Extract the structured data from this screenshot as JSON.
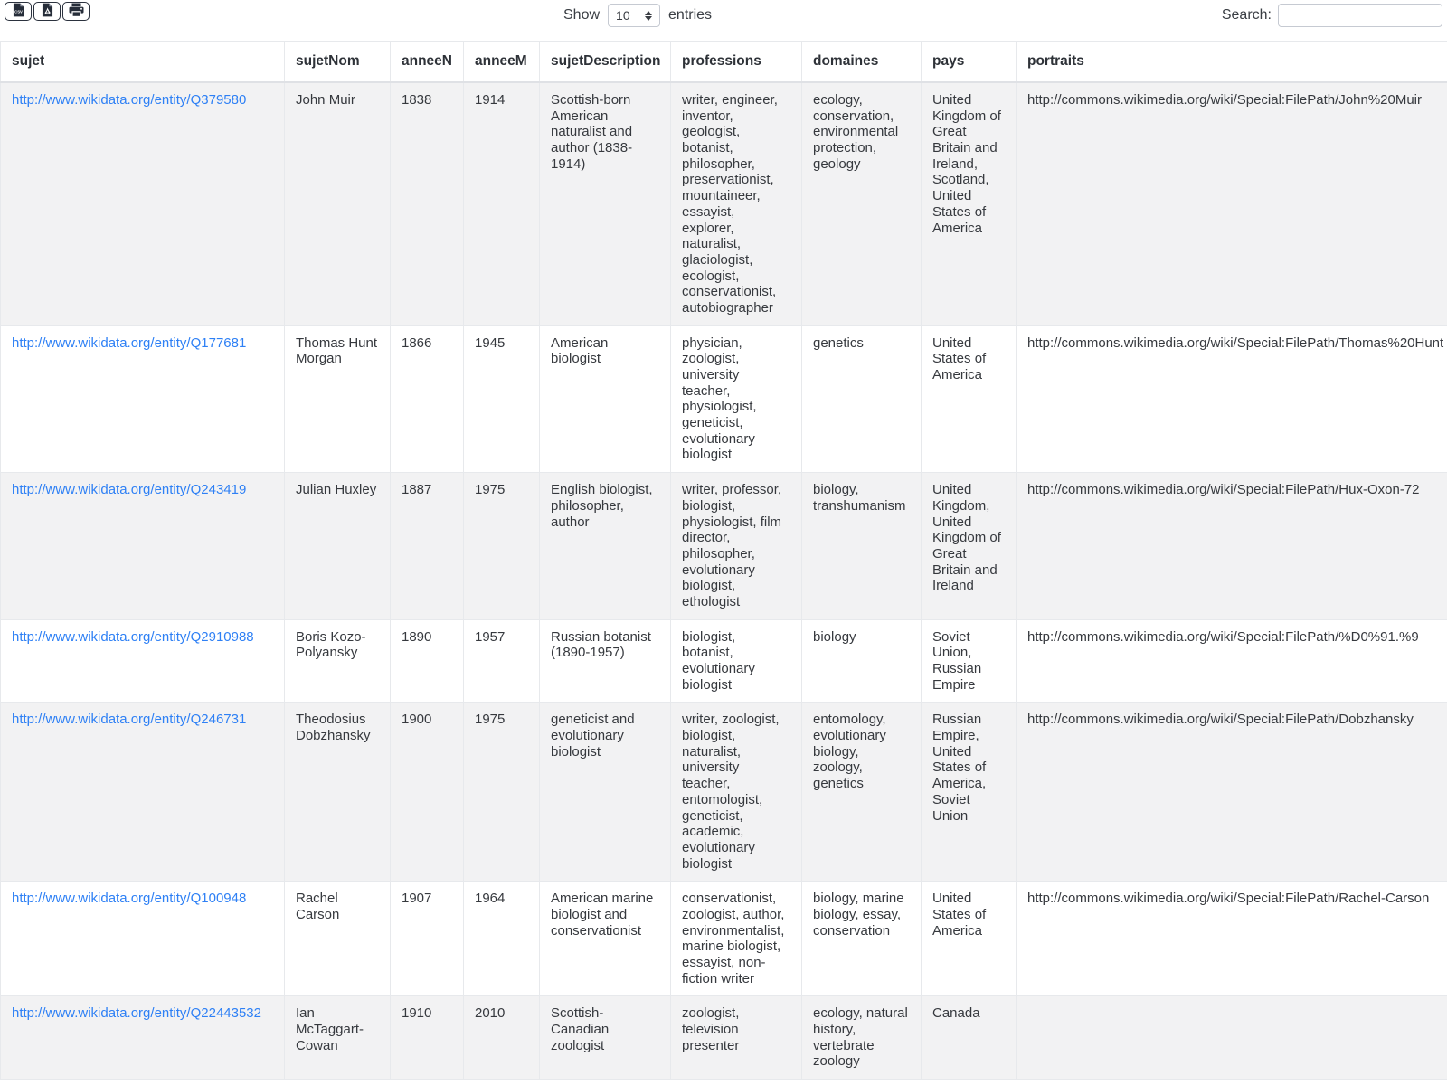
{
  "toolbar": {
    "export_buttons": [
      {
        "label": "csv-export",
        "icon": "csv-file-icon",
        "icon_text": "CSV"
      },
      {
        "label": "pdf-export",
        "icon": "pdf-file-icon"
      },
      {
        "label": "print",
        "icon": "printer-icon"
      }
    ],
    "length_menu": {
      "show_label": "Show",
      "selected_value": "10",
      "entries_label": "entries"
    },
    "search": {
      "label": "Search:",
      "value": ""
    }
  },
  "colors": {
    "link": "#2e80f5",
    "stripe": "#f2f2f3",
    "border": "#e7e9ec",
    "icon": "#262d39"
  },
  "table": {
    "columns": [
      "sujet",
      "sujetNom",
      "anneeN",
      "anneeM",
      "sujetDescription",
      "professions",
      "domaines",
      "pays",
      "portraits"
    ],
    "rows": [
      {
        "sujet": "http://www.wikidata.org/entity/Q379580",
        "sujetNom": "John Muir",
        "anneeN": "1838",
        "anneeM": "1914",
        "sujetDescription": "Scottish-born American naturalist and author (1838-1914)",
        "professions": "writer, engineer, inventor, geologist, botanist, philosopher, preservationist, mountaineer, essayist, explorer, naturalist, glaciologist, ecologist, conservationist, autobiographer",
        "domaines": "ecology, conservation, environmental protection, geology",
        "pays": "United Kingdom of Great Britain and Ireland, Scotland, United States of America",
        "portraits": "http://commons.wikimedia.org/wiki/Special:FilePath/John%20Muir"
      },
      {
        "sujet": "http://www.wikidata.org/entity/Q177681",
        "sujetNom": "Thomas Hunt Morgan",
        "anneeN": "1866",
        "anneeM": "1945",
        "sujetDescription": "American biologist",
        "professions": "physician, zoologist, university teacher, physiologist, geneticist, evolutionary biologist",
        "domaines": "genetics",
        "pays": "United States of America",
        "portraits": "http://commons.wikimedia.org/wiki/Special:FilePath/Thomas%20Hunt"
      },
      {
        "sujet": "http://www.wikidata.org/entity/Q243419",
        "sujetNom": "Julian Huxley",
        "anneeN": "1887",
        "anneeM": "1975",
        "sujetDescription": "English biologist, philosopher, author",
        "professions": "writer, professor, biologist, physiologist, film director, philosopher, evolutionary biologist, ethologist",
        "domaines": "biology, transhumanism",
        "pays": "United Kingdom, United Kingdom of Great Britain and Ireland",
        "portraits": "http://commons.wikimedia.org/wiki/Special:FilePath/Hux-Oxon-72"
      },
      {
        "sujet": "http://www.wikidata.org/entity/Q2910988",
        "sujetNom": "Boris Kozo-Polyansky",
        "anneeN": "1890",
        "anneeM": "1957",
        "sujetDescription": "Russian botanist (1890-1957)",
        "professions": "biologist, botanist, evolutionary biologist",
        "domaines": "biology",
        "pays": "Soviet Union, Russian Empire",
        "portraits": "http://commons.wikimedia.org/wiki/Special:FilePath/%D0%91.%9"
      },
      {
        "sujet": "http://www.wikidata.org/entity/Q246731",
        "sujetNom": "Theodosius Dobzhansky",
        "anneeN": "1900",
        "anneeM": "1975",
        "sujetDescription": "geneticist and evolutionary biologist",
        "professions": "writer, zoologist, biologist, naturalist, university teacher, entomologist, geneticist, academic, evolutionary biologist",
        "domaines": "entomology, evolutionary biology, zoology, genetics",
        "pays": "Russian Empire, United States of America, Soviet Union",
        "portraits": "http://commons.wikimedia.org/wiki/Special:FilePath/Dobzhansky"
      },
      {
        "sujet": "http://www.wikidata.org/entity/Q100948",
        "sujetNom": "Rachel Carson",
        "anneeN": "1907",
        "anneeM": "1964",
        "sujetDescription": "American marine biologist and conservationist",
        "professions": "conservationist, zoologist, author, environmentalist, marine biologist, essayist, non-fiction writer",
        "domaines": "biology, marine biology, essay, conservation",
        "pays": "United States of America",
        "portraits": "http://commons.wikimedia.org/wiki/Special:FilePath/Rachel-Carson"
      },
      {
        "sujet": "http://www.wikidata.org/entity/Q22443532",
        "sujetNom": "Ian McTaggart-Cowan",
        "anneeN": "1910",
        "anneeM": "2010",
        "sujetDescription": "Scottish-Canadian zoologist",
        "professions": "zoologist, television presenter",
        "domaines": "ecology, natural history, vertebrate zoology",
        "pays": "Canada",
        "portraits": ""
      }
    ]
  }
}
